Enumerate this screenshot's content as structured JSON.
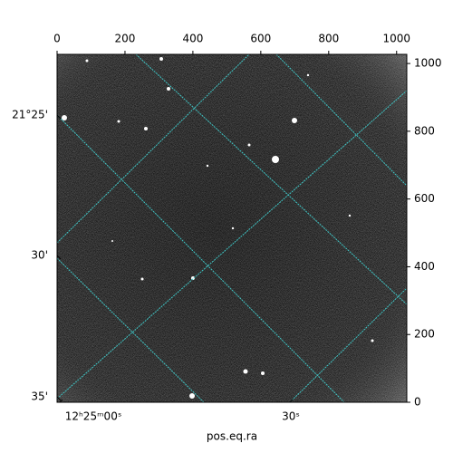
{
  "chart_data": {
    "type": "image",
    "xlabel": "pos.eq.ra",
    "xlim": [
      0,
      1030
    ],
    "ylim": [
      0,
      1027
    ],
    "xticks": [
      0,
      200,
      400,
      600,
      800,
      1000
    ],
    "yticks": [
      0,
      200,
      400,
      600,
      800,
      1000
    ],
    "ra_ticks": [
      "12ʰ25ᵐ00ˢ",
      "30ˢ"
    ],
    "dec_ticks": [
      "21°25'",
      "30'",
      "35'"
    ],
    "grid_color": "#3fc6c6"
  }
}
